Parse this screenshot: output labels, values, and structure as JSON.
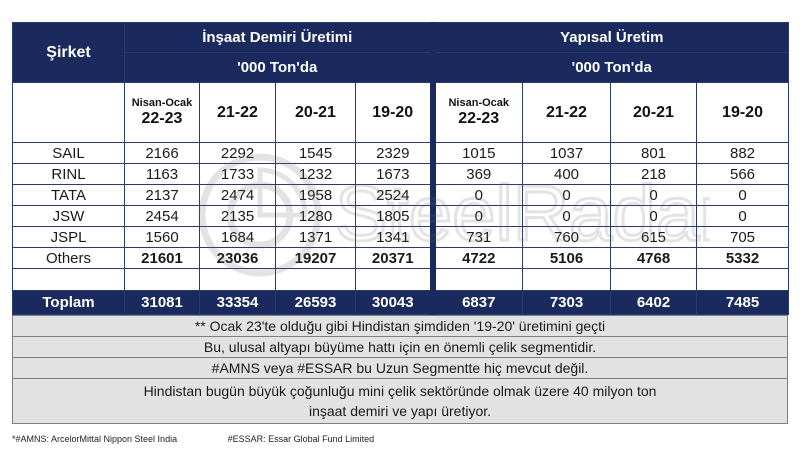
{
  "header": {
    "company_label": "Şirket",
    "group_rebar": "İnşaat Demiri Üretimi",
    "group_structural": "Yapısal Üretim",
    "unit": "'000 Ton'da"
  },
  "years": [
    {
      "sub": "Nisan-Ocak",
      "label": "22-23"
    },
    {
      "sub": "",
      "label": "21-22"
    },
    {
      "sub": "",
      "label": "20-21"
    },
    {
      "sub": "",
      "label": "19-20"
    }
  ],
  "rows": [
    {
      "company": "SAIL",
      "rebar": [
        "2166",
        "2292",
        "1545",
        "2329"
      ],
      "structural": [
        "1015",
        "1037",
        "801",
        "882"
      ]
    },
    {
      "company": "RINL",
      "rebar": [
        "1163",
        "1733",
        "1232",
        "1673"
      ],
      "structural": [
        "369",
        "400",
        "218",
        "566"
      ]
    },
    {
      "company": "TATA",
      "rebar": [
        "2137",
        "2474",
        "1958",
        "2524"
      ],
      "structural": [
        "0",
        "0",
        "0",
        "0"
      ]
    },
    {
      "company": "JSW",
      "rebar": [
        "2454",
        "2135",
        "1280",
        "1805"
      ],
      "structural": [
        "0",
        "0",
        "0",
        "0"
      ]
    },
    {
      "company": "JSPL",
      "rebar": [
        "1560",
        "1684",
        "1371",
        "1341"
      ],
      "structural": [
        "731",
        "760",
        "615",
        "705"
      ]
    },
    {
      "company": "Others",
      "rebar": [
        "21601",
        "23036",
        "19207",
        "20371"
      ],
      "structural": [
        "4722",
        "5106",
        "4768",
        "5332"
      ]
    }
  ],
  "total": {
    "label": "Toplam",
    "rebar": [
      "31081",
      "33354",
      "26593",
      "30043"
    ],
    "structural": [
      "6837",
      "7303",
      "6402",
      "7485"
    ]
  },
  "notes": [
    "** Ocak 23'te olduğu gibi Hindistan şimdiden '19-20' üretimini geçti",
    "Bu, ulusal altyapı büyüme hattı için en önemli çelik segmentidir.",
    "#AMNS veya #ESSAR bu Uzun Segmentte hiç mevcut değil.",
    "Hindistan bugün büyük çoğunluğu mini çelik sektöründe olmak üzere 40 milyon ton",
    "inşaat demiri ve yapı üretiyor."
  ],
  "footnotes": [
    "*#AMNS: ArcelorMittal Nippon Steel India",
    "#ESSAR: Essar Global Fund Limited"
  ],
  "watermark": {
    "text": "SteelRadar",
    "icon": "radar-logo-icon"
  }
}
